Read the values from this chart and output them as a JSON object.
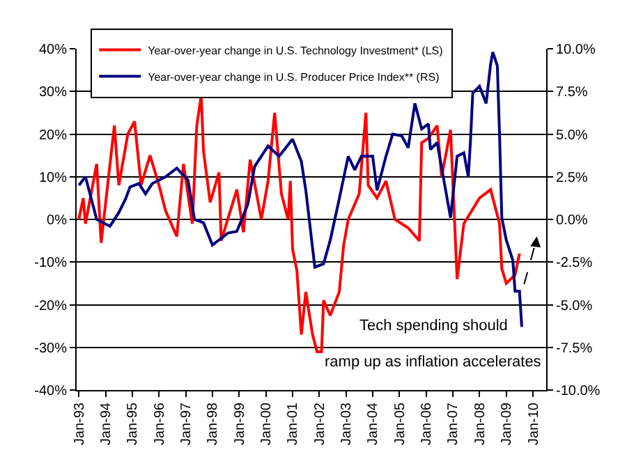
{
  "chart_data": {
    "type": "line",
    "series": [
      {
        "name": "Year-over-year change in U.S. Technology Investment* (LS)",
        "color": "#ff0000",
        "x": [
          "1993-01",
          "1993-03",
          "1993-04",
          "1993-09",
          "1993-11",
          "1994-05",
          "1994-07",
          "1994-11",
          "1995-02",
          "1995-05",
          "1995-09",
          "1996-01",
          "1996-04",
          "1996-09",
          "1996-12",
          "1997-04",
          "1997-06",
          "1997-08",
          "1997-09",
          "1997-12",
          "1998-04",
          "1998-05",
          "1998-12",
          "1999-03",
          "1999-06",
          "1999-11",
          "2000-02",
          "2000-05",
          "2000-08",
          "2000-11",
          "2000-12",
          "2001-01",
          "2001-03",
          "2001-05",
          "2001-07",
          "2001-10",
          "2001-12",
          "2002-02",
          "2002-03",
          "2002-06",
          "2002-10",
          "2002-12",
          "2003-02",
          "2003-07",
          "2003-10",
          "2003-11",
          "2004-03",
          "2004-07",
          "2004-11",
          "2005-05",
          "2005-10",
          "2005-11",
          "2006-02",
          "2006-06",
          "2006-08",
          "2006-12",
          "2007-03",
          "2007-06",
          "2008-01",
          "2008-06",
          "2008-10",
          "2008-11",
          "2009-01",
          "2009-05",
          "2009-07"
        ],
        "values": [
          0,
          5,
          -1,
          13,
          -5.5,
          22,
          8,
          20,
          23,
          8,
          15,
          8,
          2,
          -4,
          13,
          -1,
          22,
          29,
          16,
          4,
          11,
          -5,
          7,
          -3,
          14,
          0,
          9,
          25,
          6,
          0,
          9,
          -7,
          -12,
          -27,
          -17,
          -27,
          -31,
          -31,
          -19,
          -22.5,
          -17,
          -6,
          0,
          6,
          25,
          8,
          5,
          9,
          0,
          -2,
          -5,
          18,
          19,
          22,
          10,
          21,
          -14,
          -1,
          5,
          7,
          -1,
          -11.5,
          -15,
          -13,
          -8
        ]
      },
      {
        "name": "Year-over-year change in U.S. Producer Price Index** (RS)",
        "color": "#000080",
        "axis": "y2",
        "x": [
          "1993-01",
          "1993-04",
          "1993-09",
          "1994-03",
          "1994-07",
          "1994-10",
          "1994-12",
          "1995-04",
          "1995-07",
          "1995-10",
          "1996-04",
          "1996-09",
          "1997-02",
          "1997-05",
          "1997-09",
          "1998-01",
          "1998-08",
          "1998-12",
          "1999-05",
          "1999-08",
          "2000-02",
          "2000-07",
          "2001-01",
          "2001-05",
          "2001-07",
          "2001-11",
          "2002-03",
          "2002-06",
          "2002-10",
          "2003-02",
          "2003-05",
          "2003-08",
          "2004-01",
          "2004-03",
          "2004-07",
          "2004-10",
          "2005-02",
          "2005-05",
          "2005-08",
          "2005-11",
          "2006-02",
          "2006-03",
          "2006-06",
          "2006-09",
          "2006-12",
          "2007-03",
          "2007-06",
          "2007-08",
          "2007-09",
          "2007-10",
          "2008-01",
          "2008-04",
          "2008-06",
          "2008-07",
          "2008-09",
          "2008-10",
          "2008-11",
          "2009-01",
          "2009-04",
          "2009-05",
          "2009-07",
          "2009-08"
        ],
        "values": [
          2.0,
          2.5,
          0,
          -0.4,
          0.4,
          1.2,
          1.9,
          2.1,
          1.5,
          2.1,
          2.5,
          3.0,
          2.3,
          0,
          -0.2,
          -1.5,
          -0.8,
          -0.7,
          0.9,
          3.1,
          4.3,
          3.7,
          4.7,
          3.4,
          1.7,
          -2.8,
          -2.6,
          -1.2,
          1.2,
          3.7,
          2.9,
          3.7,
          3.7,
          1.7,
          3.7,
          5.0,
          4.9,
          4.2,
          6.8,
          5.3,
          5.6,
          4.1,
          4.5,
          2.3,
          0.1,
          3.7,
          3.9,
          2.5,
          4.7,
          7.4,
          7.8,
          6.8,
          9.1,
          9.8,
          9.0,
          5.0,
          0.1,
          -1.2,
          -2.4,
          -4.2,
          -4.2,
          -6.3
        ]
      }
    ],
    "xlim": [
      "1992-12",
      "2010-07"
    ],
    "xticks": [
      {
        "value": "1993-01",
        "label": "Jan-93"
      },
      {
        "value": "1994-01",
        "label": "Jan-94"
      },
      {
        "value": "1995-01",
        "label": "Jan-95"
      },
      {
        "value": "1996-01",
        "label": "Jan-96"
      },
      {
        "value": "1997-01",
        "label": "Jan-97"
      },
      {
        "value": "1998-01",
        "label": "Jan-98"
      },
      {
        "value": "1999-01",
        "label": "Jan-99"
      },
      {
        "value": "2000-01",
        "label": "Jan-00"
      },
      {
        "value": "2001-01",
        "label": "Jan-01"
      },
      {
        "value": "2002-01",
        "label": "Jan-02"
      },
      {
        "value": "2003-01",
        "label": "Jan-03"
      },
      {
        "value": "2004-01",
        "label": "Jan-04"
      },
      {
        "value": "2005-01",
        "label": "Jan-05"
      },
      {
        "value": "2006-01",
        "label": "Jan-06"
      },
      {
        "value": "2007-01",
        "label": "Jan-07"
      },
      {
        "value": "2008-01",
        "label": "Jan-08"
      },
      {
        "value": "2009-01",
        "label": "Jan-09"
      },
      {
        "value": "2010-01",
        "label": "Jan-10"
      }
    ],
    "ylim": [
      -40,
      40
    ],
    "yticks": [
      {
        "value": -40,
        "label": "-40%"
      },
      {
        "value": -30,
        "label": "-30%"
      },
      {
        "value": -20,
        "label": "-20%"
      },
      {
        "value": -10,
        "label": "-10%"
      },
      {
        "value": 0,
        "label": "0%"
      },
      {
        "value": 10,
        "label": "10%"
      },
      {
        "value": 20,
        "label": "20%"
      },
      {
        "value": 30,
        "label": "30%"
      },
      {
        "value": 40,
        "label": "40%"
      }
    ],
    "y2lim": [
      -10,
      10
    ],
    "y2ticks": [
      {
        "value": -10,
        "label": "-10.0%"
      },
      {
        "value": -7.5,
        "label": "-7.5%"
      },
      {
        "value": -5,
        "label": "-5.0%"
      },
      {
        "value": -2.5,
        "label": "-2.5%"
      },
      {
        "value": 0,
        "label": "0.0%"
      },
      {
        "value": 2.5,
        "label": "2.5%"
      },
      {
        "value": 5,
        "label": "5.0%"
      },
      {
        "value": 7.5,
        "label": "7.5%"
      },
      {
        "value": 10,
        "label": "10.0%"
      }
    ],
    "annotations": [
      "Tech spending should\nramp up as inflation accelerates"
    ],
    "grid": "y",
    "legend": "top left",
    "marker": "none",
    "line_style": "solid"
  }
}
